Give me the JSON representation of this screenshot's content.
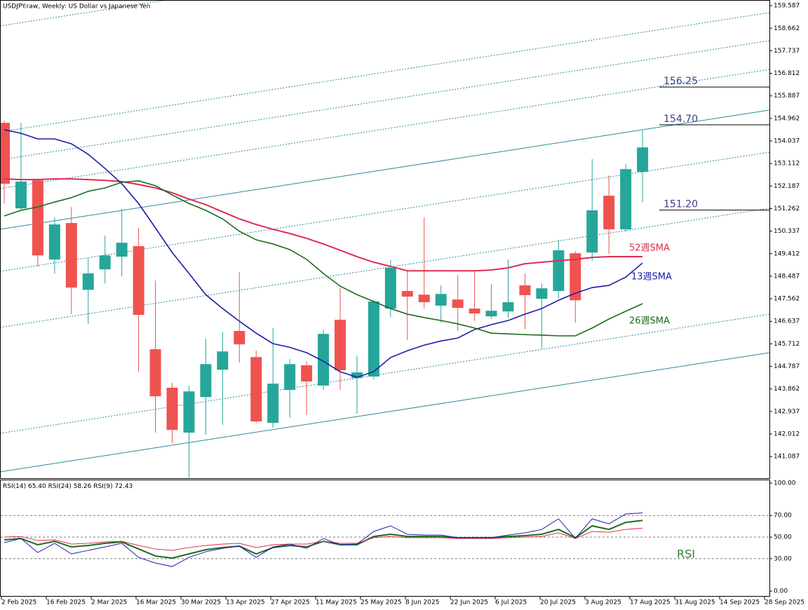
{
  "chart_data": [
    {
      "type": "candlestick",
      "title": "USDJPY.raw, Weekly:  US Dollar vs Japanese Yen",
      "ylim": [
        140.2,
        159.82
      ],
      "yticks": [
        159.587,
        158.662,
        157.737,
        156.812,
        155.887,
        154.962,
        154.037,
        153.112,
        152.187,
        151.262,
        150.337,
        149.412,
        148.487,
        147.562,
        146.637,
        145.712,
        144.787,
        143.862,
        142.937,
        142.012,
        141.087
      ],
      "x_labels": [
        "2 Feb 2025",
        "16 Feb 2025",
        "2 Mar 2025",
        "16 Mar 2025",
        "30 Mar 2025",
        "13 Apr 2025",
        "27 Apr 2025",
        "11 May 2025",
        "25 May 2025",
        "8 Jun 2025",
        "22 Jun 2025",
        "6 Jul 2025",
        "20 Jul 2025",
        "3 Aug 2025",
        "17 Aug 2025",
        "31 Aug 2025",
        "14 Sep 2025",
        "28 Sep 2025"
      ],
      "up_color": "#26a69a",
      "down_color": "#ef5350",
      "ohlc": {
        "open": [
          154.78,
          151.27,
          152.42,
          149.17,
          150.67,
          147.93,
          148.77,
          149.29,
          149.72,
          145.49,
          143.91,
          142.07,
          143.53,
          144.65,
          146.24,
          145.17,
          142.47,
          143.82,
          144.83,
          144.0,
          146.7,
          144.31,
          144.37,
          147.16,
          147.88,
          147.73,
          147.28,
          147.53,
          147.16,
          146.84,
          147.04,
          148.11,
          147.56,
          147.88,
          149.43,
          149.46,
          151.79,
          150.41,
          152.77
        ],
        "high": [
          154.87,
          154.78,
          152.48,
          150.9,
          151.33,
          149.23,
          150.15,
          151.24,
          150.47,
          148.31,
          144.11,
          143.99,
          145.92,
          146.21,
          148.65,
          145.43,
          146.35,
          145.09,
          145.0,
          146.3,
          148.02,
          145.23,
          147.5,
          149.17,
          148.74,
          150.9,
          148.11,
          148.54,
          148.74,
          148.17,
          149.17,
          148.6,
          148.19,
          149.98,
          149.52,
          153.29,
          152.62,
          153.08,
          154.47
        ],
        "low": [
          151.47,
          151.19,
          148.88,
          148.59,
          146.93,
          146.53,
          148.19,
          148.48,
          144.57,
          142.07,
          141.63,
          140.19,
          141.98,
          142.38,
          144.94,
          142.47,
          142.27,
          142.67,
          142.79,
          143.82,
          143.82,
          142.84,
          144.25,
          146.81,
          145.86,
          147.16,
          146.58,
          146.24,
          146.64,
          146.73,
          146.78,
          146.32,
          145.52,
          147.59,
          146.58,
          149.12,
          149.4,
          150.32,
          151.53
        ],
        "close": [
          152.28,
          152.37,
          149.34,
          150.61,
          148.02,
          148.6,
          149.34,
          149.86,
          146.9,
          143.56,
          142.18,
          143.76,
          144.88,
          145.4,
          145.69,
          142.53,
          144.08,
          144.88,
          144.17,
          146.12,
          144.63,
          144.54,
          147.45,
          148.83,
          147.65,
          147.42,
          147.76,
          147.19,
          146.96,
          147.07,
          147.42,
          147.71,
          147.99,
          149.55,
          147.5,
          151.19,
          150.41,
          152.88,
          153.77
        ]
      },
      "series": [
        {
          "name": "52週SMA",
          "color": "#dc2d52",
          "values": [
            152.48,
            152.45,
            152.45,
            152.48,
            152.48,
            152.45,
            152.42,
            152.37,
            152.25,
            152.11,
            151.91,
            151.65,
            151.42,
            151.13,
            150.84,
            150.61,
            150.41,
            150.24,
            150.04,
            149.81,
            149.55,
            149.29,
            149.06,
            148.89,
            148.71,
            148.71,
            148.71,
            148.71,
            148.71,
            148.74,
            148.83,
            149.0,
            149.06,
            149.12,
            149.18,
            149.26,
            149.29,
            149.29,
            149.29
          ]
        },
        {
          "name": "13週SMA",
          "color": "#1c1ca8",
          "values": [
            154.5,
            154.35,
            154.12,
            154.12,
            153.92,
            153.49,
            152.91,
            152.28,
            151.47,
            150.47,
            149.46,
            148.6,
            147.73,
            147.16,
            146.64,
            146.15,
            145.72,
            145.57,
            145.35,
            145.0,
            144.57,
            144.34,
            144.57,
            145.15,
            145.43,
            145.66,
            145.83,
            145.95,
            146.3,
            146.5,
            146.67,
            146.93,
            147.16,
            147.5,
            147.79,
            148.02,
            148.11,
            148.45,
            149.03
          ]
        },
        {
          "name": "26週SMA",
          "color": "#1b6b1b",
          "values": [
            150.96,
            151.19,
            151.33,
            151.53,
            151.71,
            151.97,
            152.11,
            152.34,
            152.4,
            152.2,
            151.82,
            151.47,
            151.19,
            150.84,
            150.33,
            149.98,
            149.81,
            149.58,
            149.18,
            148.6,
            148.08,
            147.73,
            147.45,
            147.16,
            146.93,
            146.79,
            146.67,
            146.53,
            146.36,
            146.15,
            146.12,
            146.09,
            146.07,
            146.04,
            146.04,
            146.36,
            146.73,
            147.05,
            147.36
          ]
        }
      ],
      "levels": [
        {
          "value": 156.25,
          "label": "156.25"
        },
        {
          "value": 154.7,
          "label": "154.70"
        },
        {
          "value": 151.2,
          "label": "151.20"
        }
      ]
    },
    {
      "type": "line",
      "label": "RSI",
      "ylim": [
        0,
        100
      ],
      "yticks": [
        {
          "value": 100,
          "label": "100.00"
        },
        {
          "value": 70,
          "label": "70.00"
        },
        {
          "value": 50,
          "label": "50.00"
        },
        {
          "value": 30,
          "label": "30.00"
        },
        {
          "value": 0,
          "label": "0.00"
        }
      ],
      "grid_values": [
        70,
        50,
        30
      ],
      "series": [
        {
          "name": "RSI(14)",
          "current": {
            "value": 65.4,
            "label": "65.40"
          },
          "color": "#1b6b1b",
          "values": [
            47.4,
            48.7,
            42.9,
            46.1,
            40.9,
            42.2,
            44.2,
            45.5,
            39.0,
            32.5,
            30.5,
            34.4,
            38.3,
            40.3,
            41.6,
            34.4,
            40.3,
            42.2,
            40.9,
            46.1,
            42.9,
            42.9,
            50.6,
            52.6,
            50.6,
            50.6,
            50.6,
            49.4,
            49.4,
            49.4,
            50.6,
            51.3,
            52.6,
            57.1,
            49.4,
            60.4,
            57.1,
            63.6,
            65.4
          ]
        },
        {
          "name": "RSI(24)",
          "current": {
            "value": 58.26,
            "label": "58.26"
          },
          "color": "#dc2d52",
          "values": [
            50.0,
            50.6,
            46.8,
            47.4,
            43.5,
            44.2,
            45.5,
            46.1,
            42.2,
            39.0,
            37.7,
            40.3,
            42.2,
            43.5,
            44.2,
            40.3,
            42.9,
            43.5,
            43.5,
            46.1,
            44.2,
            44.2,
            49.4,
            50.6,
            49.4,
            49.4,
            49.4,
            48.7,
            48.7,
            48.7,
            49.4,
            50.0,
            50.6,
            53.9,
            48.7,
            55.2,
            54.5,
            57.1,
            58.26
          ]
        },
        {
          "name": "RSI(9)",
          "current": {
            "value": 72.43,
            "label": "72.43"
          },
          "color": "#1c1ca8",
          "values": [
            44.8,
            48.7,
            35.7,
            44.2,
            34.4,
            37.7,
            40.9,
            44.2,
            31.2,
            26.0,
            22.7,
            31.2,
            36.4,
            39.6,
            41.6,
            31.2,
            40.9,
            43.5,
            39.6,
            48.7,
            42.9,
            43.5,
            55.2,
            60.4,
            52.6,
            51.9,
            51.9,
            49.4,
            49.4,
            49.4,
            51.9,
            53.9,
            57.1,
            66.9,
            48.7,
            66.9,
            62.3,
            71.4,
            72.43
          ]
        }
      ]
    }
  ]
}
